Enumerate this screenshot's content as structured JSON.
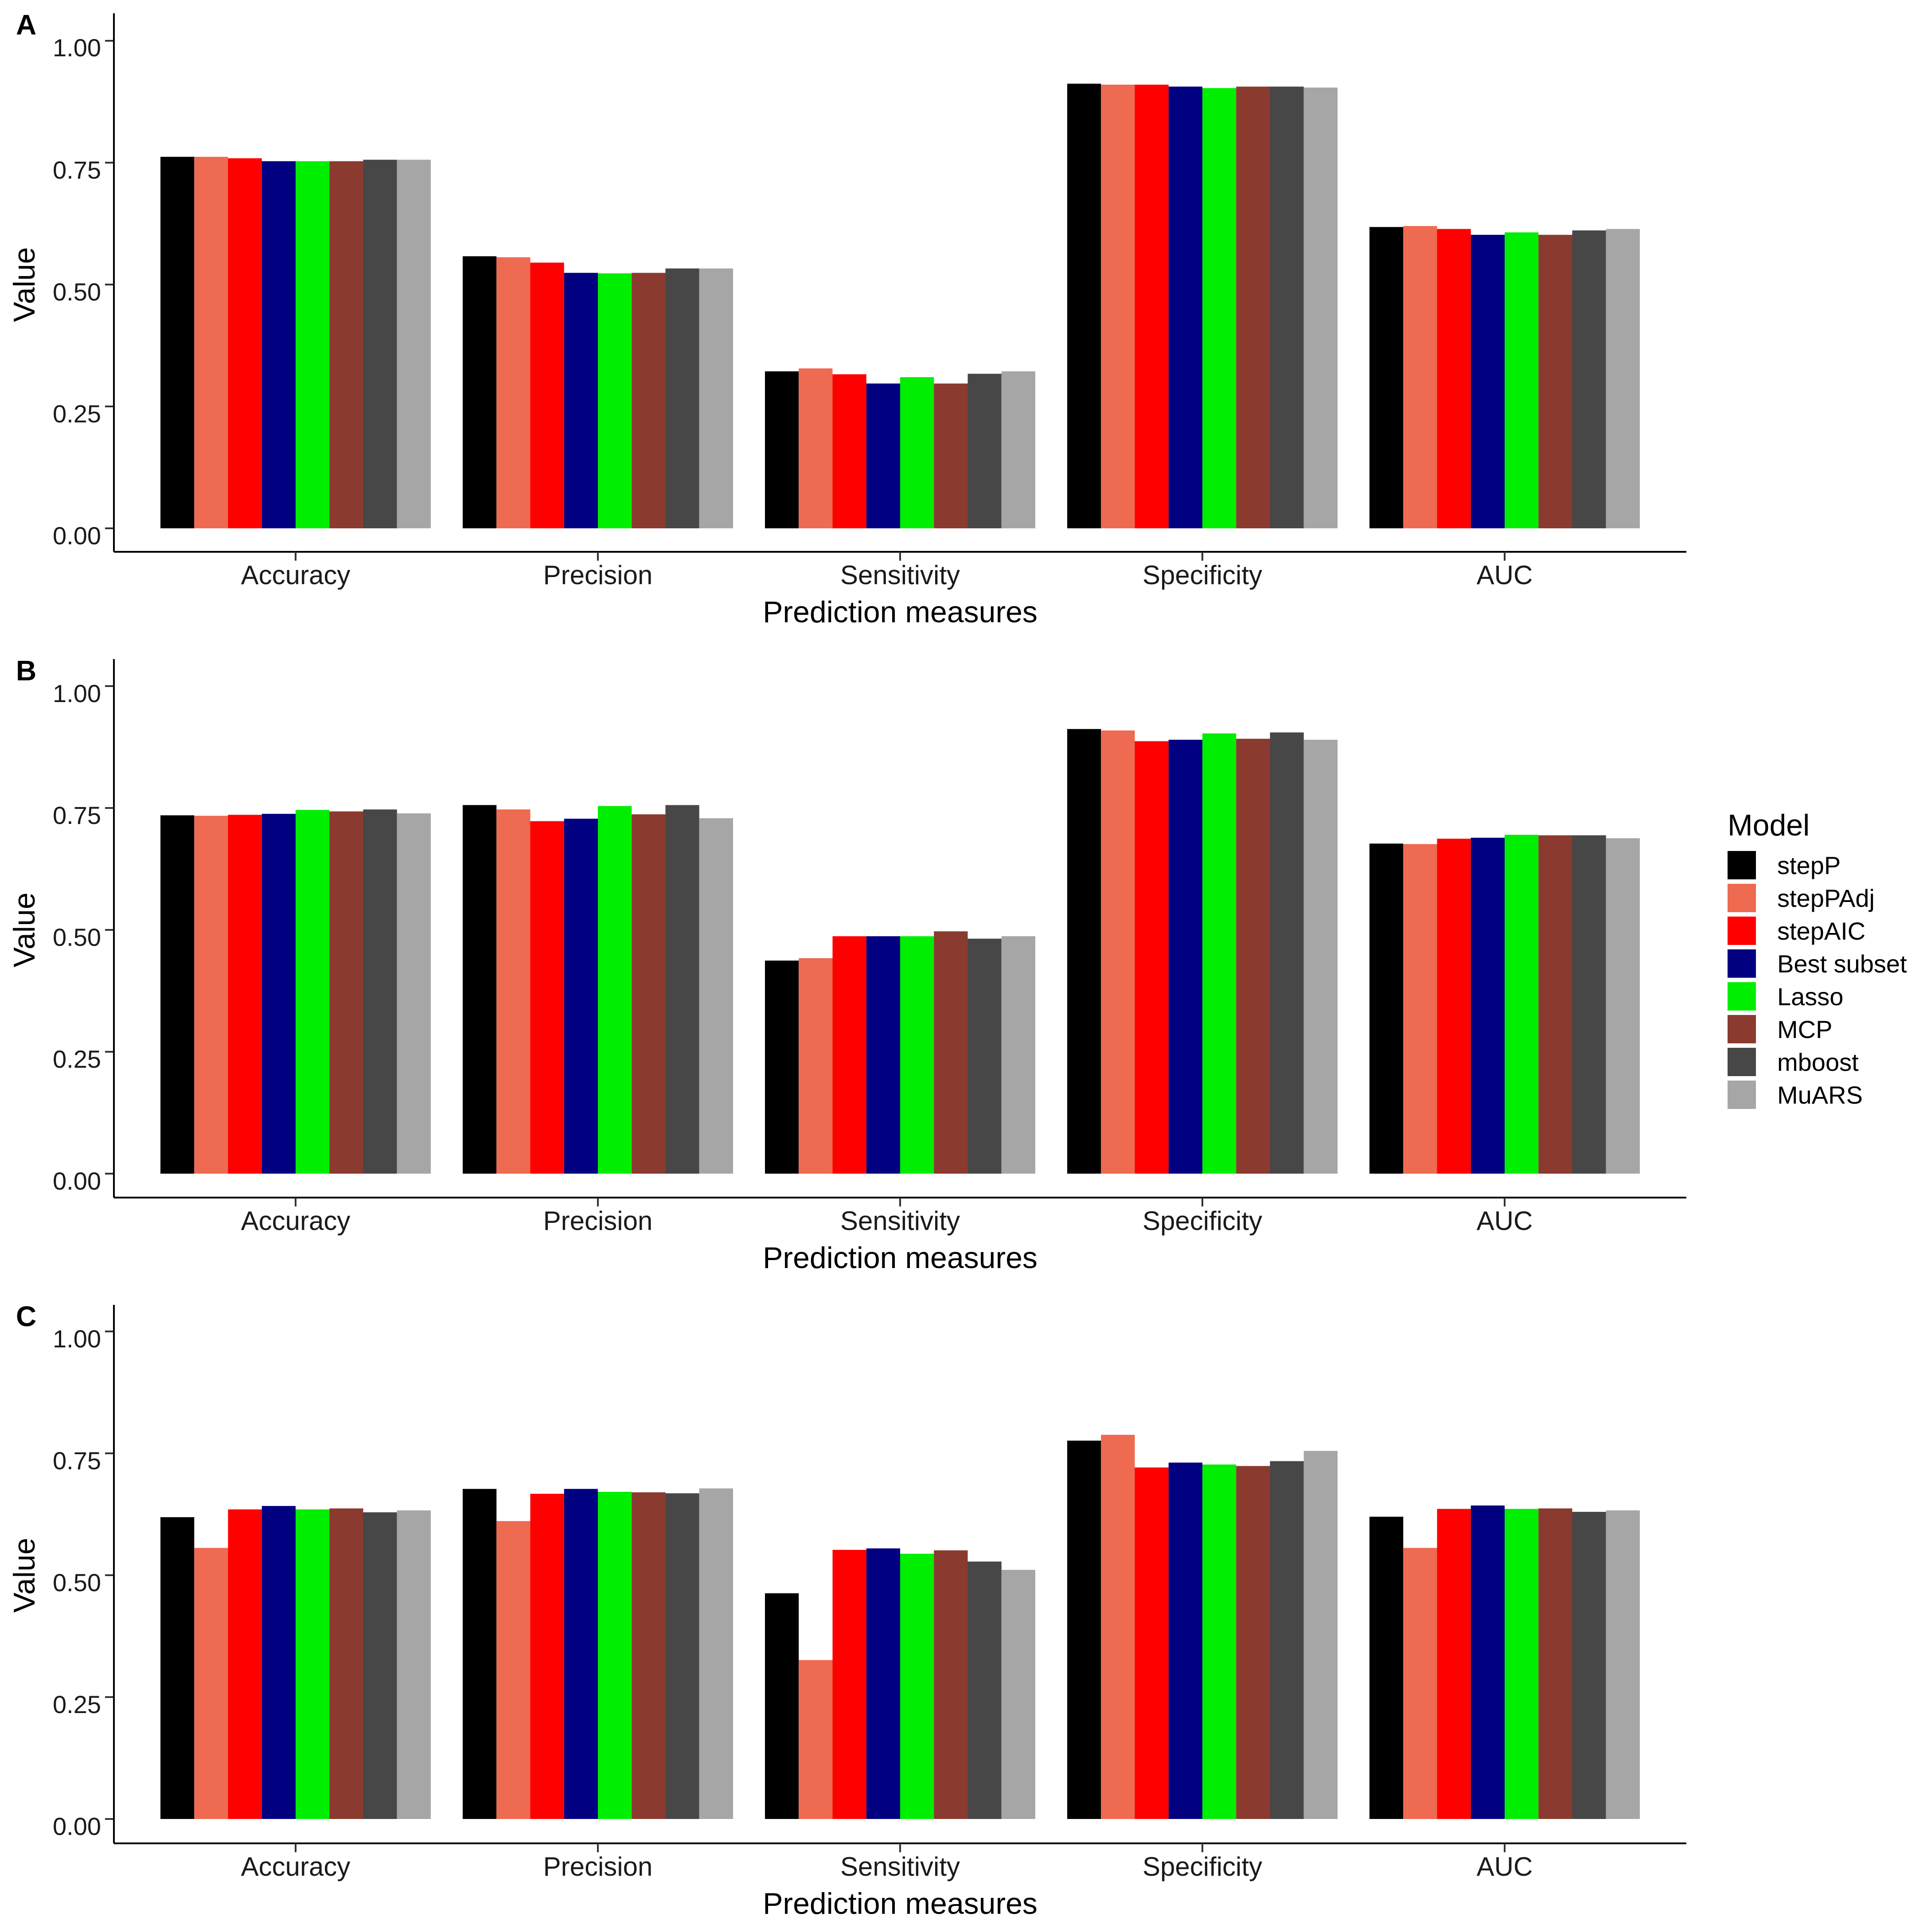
{
  "colors": {
    "stepP": "#000000",
    "stepPAdj": "#EE6A50",
    "stepAIC": "#FF0000",
    "Best subset": "#000080",
    "Lasso": "#00EE00",
    "MCP": "#8B3A2F",
    "mboost": "#474747",
    "MuARS": "#A6A6A6"
  },
  "legend": {
    "title": "Model",
    "items": [
      "stepP",
      "stepPAdj",
      "stepAIC",
      "Best subset",
      "Lasso",
      "MCP",
      "mboost",
      "MuARS"
    ]
  },
  "chart_data": [
    {
      "type": "bar",
      "panel": "A",
      "xlabel": "Prediction measures",
      "ylabel": "Value",
      "ylim": [
        0,
        1
      ],
      "yticks": [
        "0.00",
        "0.25",
        "0.50",
        "0.75",
        "1.00"
      ],
      "categories": [
        "Accuracy",
        "Precision",
        "Sensitivity",
        "Specificity",
        "AUC"
      ],
      "series": [
        {
          "name": "stepP",
          "values": [
            0.762,
            0.558,
            0.322,
            0.912,
            0.618
          ]
        },
        {
          "name": "stepPAdj",
          "values": [
            0.762,
            0.556,
            0.328,
            0.91,
            0.62
          ]
        },
        {
          "name": "stepAIC",
          "values": [
            0.759,
            0.545,
            0.316,
            0.91,
            0.614
          ]
        },
        {
          "name": "Best subset",
          "values": [
            0.753,
            0.524,
            0.297,
            0.906,
            0.602
          ]
        },
        {
          "name": "Lasso",
          "values": [
            0.753,
            0.523,
            0.31,
            0.903,
            0.607
          ]
        },
        {
          "name": "MCP",
          "values": [
            0.753,
            0.524,
            0.297,
            0.906,
            0.602
          ]
        },
        {
          "name": "mboost",
          "values": [
            0.756,
            0.533,
            0.317,
            0.906,
            0.611
          ]
        },
        {
          "name": "MuARS",
          "values": [
            0.756,
            0.533,
            0.322,
            0.904,
            0.614
          ]
        }
      ]
    },
    {
      "type": "bar",
      "panel": "B",
      "xlabel": "Prediction measures",
      "ylabel": "Value",
      "ylim": [
        0,
        1
      ],
      "yticks": [
        "0.00",
        "0.25",
        "0.50",
        "0.75",
        "1.00"
      ],
      "categories": [
        "Accuracy",
        "Precision",
        "Sensitivity",
        "Specificity",
        "AUC"
      ],
      "series": [
        {
          "name": "stepP",
          "values": [
            0.735,
            0.756,
            0.437,
            0.912,
            0.677
          ]
        },
        {
          "name": "stepPAdj",
          "values": [
            0.734,
            0.747,
            0.442,
            0.909,
            0.676
          ]
        },
        {
          "name": "stepAIC",
          "values": [
            0.736,
            0.723,
            0.487,
            0.887,
            0.687
          ]
        },
        {
          "name": "Best subset",
          "values": [
            0.738,
            0.728,
            0.487,
            0.89,
            0.689
          ]
        },
        {
          "name": "Lasso",
          "values": [
            0.746,
            0.754,
            0.487,
            0.903,
            0.695
          ]
        },
        {
          "name": "MCP",
          "values": [
            0.743,
            0.737,
            0.497,
            0.892,
            0.694
          ]
        },
        {
          "name": "mboost",
          "values": [
            0.747,
            0.756,
            0.482,
            0.905,
            0.694
          ]
        },
        {
          "name": "MuARS",
          "values": [
            0.739,
            0.729,
            0.487,
            0.89,
            0.688
          ]
        }
      ]
    },
    {
      "type": "bar",
      "panel": "C",
      "xlabel": "Prediction measures",
      "ylabel": "Value",
      "ylim": [
        0,
        1
      ],
      "yticks": [
        "0.00",
        "0.25",
        "0.50",
        "0.75",
        "1.00"
      ],
      "categories": [
        "Accuracy",
        "Precision",
        "Sensitivity",
        "Specificity",
        "AUC"
      ],
      "series": [
        {
          "name": "stepP",
          "values": [
            0.619,
            0.677,
            0.463,
            0.776,
            0.62
          ]
        },
        {
          "name": "stepPAdj",
          "values": [
            0.556,
            0.611,
            0.326,
            0.788,
            0.556
          ]
        },
        {
          "name": "stepAIC",
          "values": [
            0.635,
            0.667,
            0.552,
            0.721,
            0.636
          ]
        },
        {
          "name": "Best subset",
          "values": [
            0.642,
            0.677,
            0.555,
            0.731,
            0.643
          ]
        },
        {
          "name": "Lasso",
          "values": [
            0.635,
            0.671,
            0.544,
            0.727,
            0.636
          ]
        },
        {
          "name": "MCP",
          "values": [
            0.637,
            0.67,
            0.551,
            0.724,
            0.637
          ]
        },
        {
          "name": "mboost",
          "values": [
            0.629,
            0.668,
            0.528,
            0.734,
            0.63
          ]
        },
        {
          "name": "MuARS",
          "values": [
            0.633,
            0.678,
            0.511,
            0.755,
            0.633
          ]
        }
      ]
    }
  ]
}
